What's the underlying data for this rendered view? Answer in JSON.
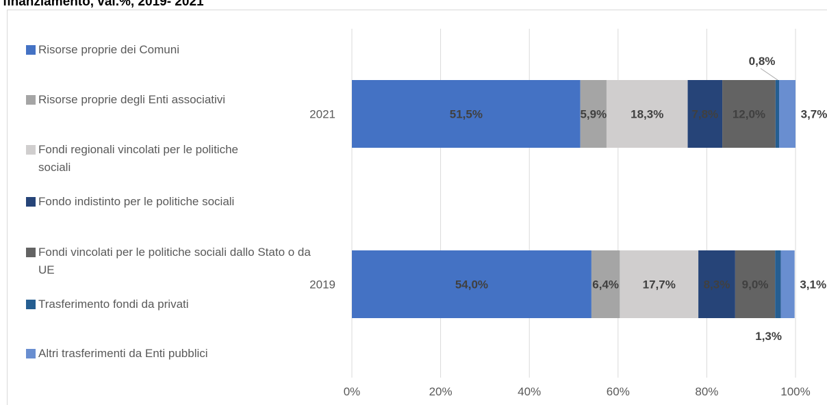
{
  "chart_data": {
    "type": "stacked-bar-horizontal",
    "title": "finanziamento, val.%, 2019- 2021",
    "categories": [
      "2021",
      "2019"
    ],
    "series": [
      {
        "name": "Risorse proprie dei Comuni",
        "color": "#4472c4",
        "values": [
          51.5,
          54.0
        ],
        "value_labels": [
          "51,5%",
          "54,0%"
        ]
      },
      {
        "name": "Risorse proprie degli Enti associativi",
        "color": "#a5a5a5",
        "values": [
          5.9,
          6.4
        ],
        "value_labels": [
          "5,9%",
          "6,4%"
        ]
      },
      {
        "name": "Fondi regionali vincolati per le politiche sociali",
        "color": "#d0cece",
        "values": [
          18.3,
          17.7
        ],
        "value_labels": [
          "18,3%",
          "17,7%"
        ]
      },
      {
        "name": "Fondo indistinto per le politiche sociali",
        "color": "#264478",
        "values": [
          7.8,
          8.3
        ],
        "value_labels": [
          "7,8%",
          "8,3%"
        ]
      },
      {
        "name": "Fondi vincolati per le politiche sociali dallo Stato o da UE",
        "color": "#636363",
        "values": [
          12.0,
          9.0
        ],
        "value_labels": [
          "12,0%",
          "9,0%"
        ]
      },
      {
        "name": "Trasferimento fondi da privati",
        "color": "#255e91",
        "values": [
          0.8,
          1.3
        ],
        "value_labels": [
          "0,8%",
          "1,3%"
        ]
      },
      {
        "name": "Altri trasferimenti da Enti pubblici",
        "color": "#698ed0",
        "values": [
          3.7,
          3.1
        ],
        "value_labels": [
          "3,7%",
          "3,1%"
        ]
      }
    ],
    "xlim": [
      0,
      100
    ],
    "xticks": [
      {
        "value": 0,
        "label": "0%"
      },
      {
        "value": 20,
        "label": "20%"
      },
      {
        "value": 40,
        "label": "40%"
      },
      {
        "value": 60,
        "label": "60%"
      },
      {
        "value": 80,
        "label": "80%"
      },
      {
        "value": 100,
        "label": "100%"
      }
    ],
    "grid": true,
    "legend": "left"
  }
}
